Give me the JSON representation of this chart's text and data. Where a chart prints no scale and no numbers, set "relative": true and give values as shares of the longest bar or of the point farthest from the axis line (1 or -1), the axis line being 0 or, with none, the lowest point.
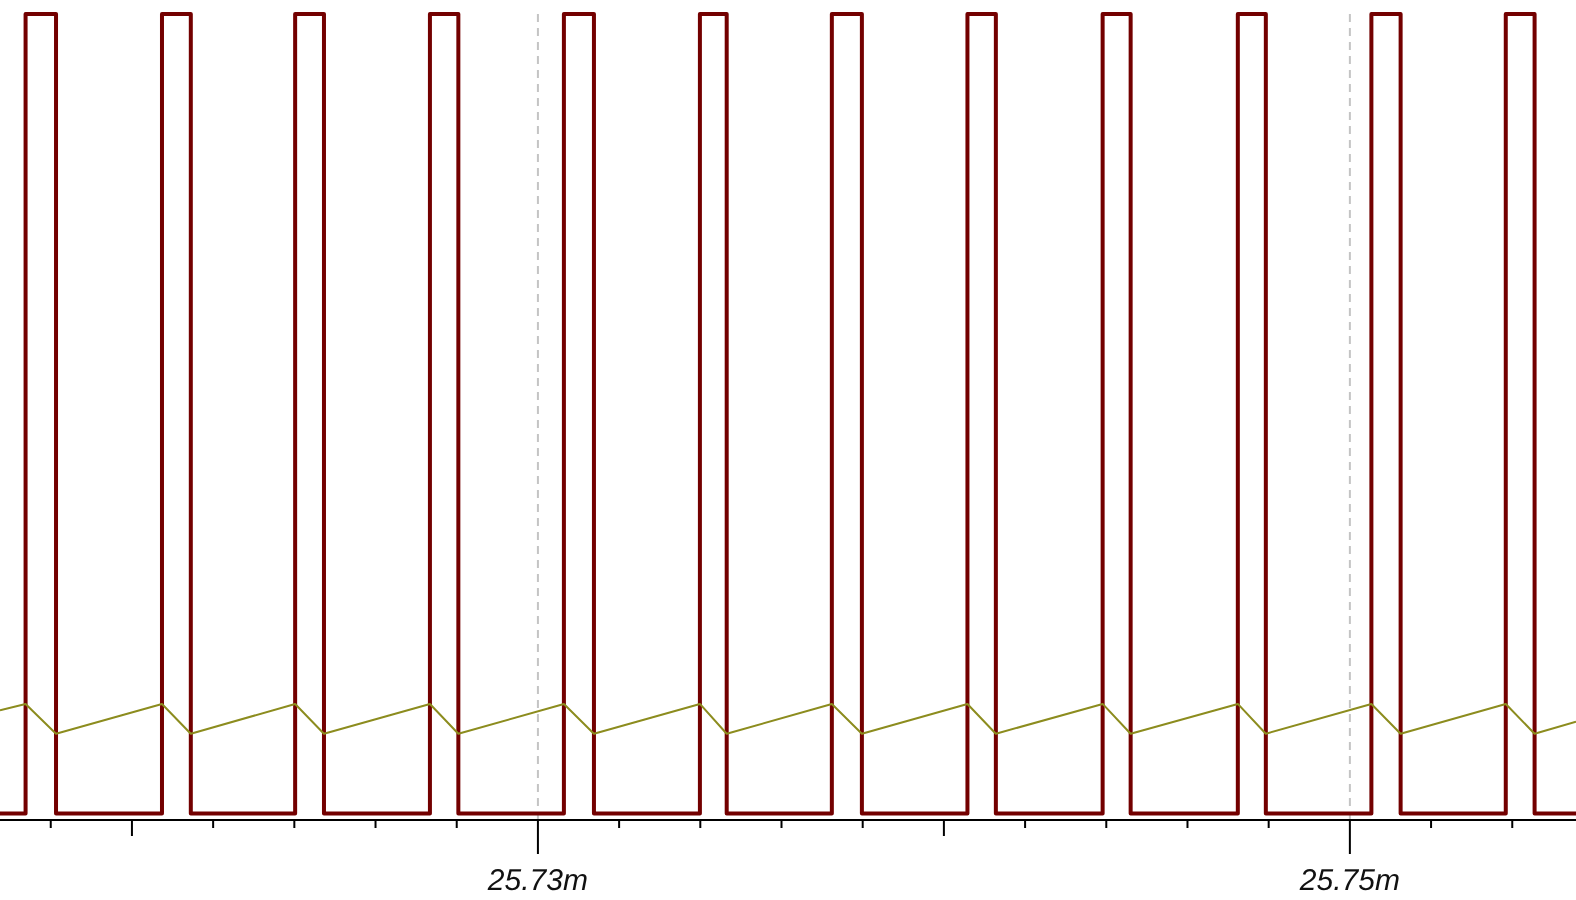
{
  "chart_data": {
    "type": "line",
    "relative": true,
    "xlim": [
      25.71675,
      25.75557
    ],
    "xticks": [
      {
        "value": 25.718,
        "label": null
      },
      {
        "value": 25.72,
        "label": null
      },
      {
        "value": 25.722,
        "label": null
      },
      {
        "value": 25.724,
        "label": null
      },
      {
        "value": 25.726,
        "label": null
      },
      {
        "value": 25.728,
        "label": null
      },
      {
        "value": 25.73,
        "label": "25.73m"
      },
      {
        "value": 25.732,
        "label": null
      },
      {
        "value": 25.734,
        "label": null
      },
      {
        "value": 25.736,
        "label": null
      },
      {
        "value": 25.738,
        "label": null
      },
      {
        "value": 25.74,
        "label": null
      },
      {
        "value": 25.742,
        "label": null
      },
      {
        "value": 25.744,
        "label": null
      },
      {
        "value": 25.746,
        "label": null
      },
      {
        "value": 25.748,
        "label": null
      },
      {
        "value": 25.75,
        "label": "25.75m"
      },
      {
        "value": 25.752,
        "label": null
      },
      {
        "value": 25.754,
        "label": null
      }
    ],
    "grid": "x",
    "marker": "none",
    "line_style": "solid",
    "series": [
      {
        "color": "#730000",
        "x": [
          25.71675,
          25.71738,
          25.71738,
          25.71813,
          25.71813,
          25.72074,
          25.72074,
          25.72145,
          25.72145,
          25.72402,
          25.72402,
          25.72473,
          25.72473,
          25.72734,
          25.72734,
          25.72804,
          25.72804,
          25.73064,
          25.73064,
          25.73138,
          25.73138,
          25.73399,
          25.73399,
          25.73465,
          25.73465,
          25.73724,
          25.73724,
          25.73798,
          25.73798,
          25.74058,
          25.74058,
          25.74128,
          25.74128,
          25.74391,
          25.74391,
          25.7446,
          25.7446,
          25.74724,
          25.74724,
          25.74793,
          25.74793,
          25.75053,
          25.75053,
          25.75125,
          25.75125,
          25.75384,
          25.75384,
          25.75455,
          25.75455,
          25.75557
        ],
        "values": [
          0.008,
          0.008,
          1,
          1,
          0.008,
          0.008,
          1,
          1,
          0.008,
          0.008,
          1,
          1,
          0.008,
          0.008,
          1,
          1,
          0.008,
          0.008,
          1,
          1,
          0.008,
          0.008,
          1,
          1,
          0.008,
          0.008,
          1,
          1,
          0.008,
          0.008,
          1,
          1,
          0.008,
          0.008,
          1,
          1,
          0.008,
          0.008,
          1,
          1,
          0.008,
          0.008,
          1,
          1,
          0.008,
          0.008,
          1,
          1,
          0.008,
          0.008
        ]
      },
      {
        "color": "#8c8c1e",
        "x": [
          25.71675,
          25.71738,
          25.71813,
          25.72074,
          25.72145,
          25.72402,
          25.72473,
          25.72734,
          25.72804,
          25.73064,
          25.73138,
          25.73399,
          25.73465,
          25.73724,
          25.73798,
          25.74058,
          25.74128,
          25.74391,
          25.7446,
          25.74724,
          25.74793,
          25.75053,
          25.75125,
          25.75384,
          25.75455,
          25.75557
        ],
        "values": [
          0.136,
          0.144,
          0.107,
          0.144,
          0.107,
          0.144,
          0.107,
          0.144,
          0.107,
          0.144,
          0.107,
          0.144,
          0.107,
          0.144,
          0.107,
          0.144,
          0.107,
          0.144,
          0.107,
          0.144,
          0.107,
          0.144,
          0.107,
          0.144,
          0.107,
          0.122
        ]
      }
    ]
  }
}
